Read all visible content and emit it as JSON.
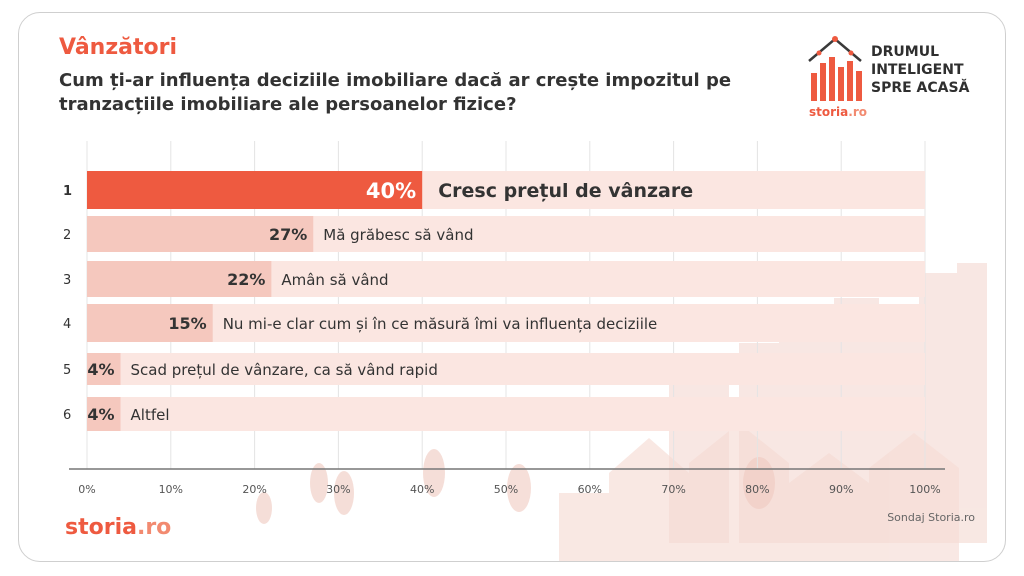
{
  "header": {
    "section": "Vânzători",
    "question": "Cum ți-ar influența deciziile imobiliare dacă ar crește impozitul pe tranzacțiile imobiliare ale persoanelor fizice?"
  },
  "brand": {
    "tagline": [
      "DRUMUL",
      "INTELIGENT",
      "SPRE ACASĂ"
    ],
    "site_name": "storia",
    "site_tld": ".ro"
  },
  "footer": {
    "logo_name": "storia",
    "logo_tld": ".ro",
    "source": "Sondaj Storia.ro"
  },
  "colors": {
    "accent": "#ee5a40",
    "bar_track": "#fbe6e1",
    "bar_fill": "#f5c8be",
    "text_dark": "#333333"
  },
  "chart_data": {
    "type": "bar",
    "orientation": "horizontal",
    "categories": [
      "Cresc prețul de vânzare",
      "Mă grăbesc să vând",
      "Amân să vând",
      "Nu mi-e clar cum și în ce măsură îmi va influența deciziile",
      "Scad prețul de vânzare, ca să vând rapid",
      "Altfel"
    ],
    "ranks": [
      "1",
      "2",
      "3",
      "4",
      "5",
      "6"
    ],
    "values": [
      40,
      27,
      22,
      15,
      4,
      4
    ],
    "value_labels": [
      "40%",
      "27%",
      "22%",
      "15%",
      "4%",
      "4%"
    ],
    "highlight_index": 0,
    "xlim": [
      0,
      100
    ],
    "xticks": [
      0,
      10,
      20,
      30,
      40,
      50,
      60,
      70,
      80,
      90,
      100
    ],
    "xtick_labels": [
      "0%",
      "10%",
      "20%",
      "30%",
      "40%",
      "50%",
      "60%",
      "70%",
      "80%",
      "90%",
      "100%"
    ],
    "grid": true
  }
}
